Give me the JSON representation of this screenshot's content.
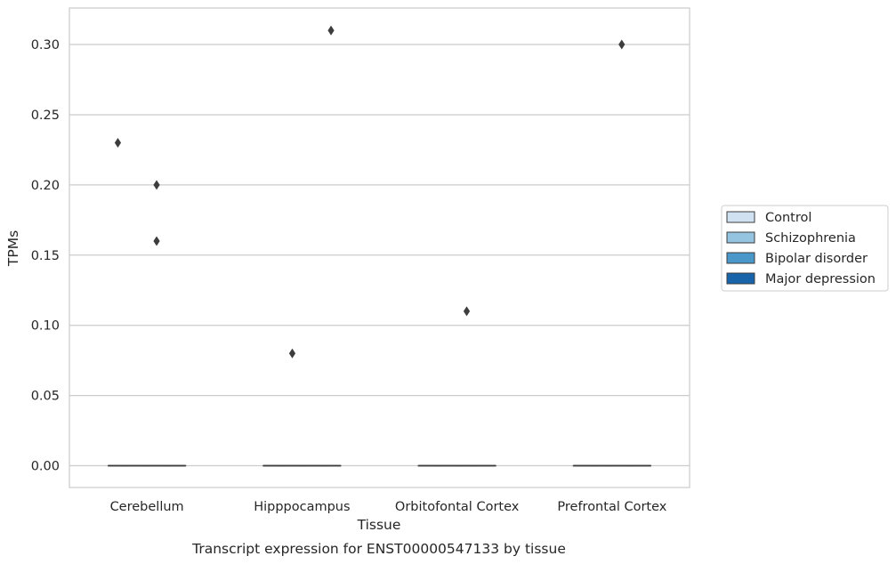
{
  "chart_data": {
    "type": "box",
    "xlabel": "Tissue",
    "ylabel": "TPMs",
    "caption": "Transcript expression for ENST00000547133 by tissue",
    "categories": [
      "Cerebellum",
      "Hipppocampus",
      "Orbitofontal Cortex",
      "Prefrontal Cortex"
    ],
    "ylim": [
      -0.0155,
      0.326
    ],
    "yticks": [
      0.0,
      0.05,
      0.1,
      0.15,
      0.2,
      0.25,
      0.3
    ],
    "ytick_labels": [
      "0.00",
      "0.05",
      "0.10",
      "0.15",
      "0.20",
      "0.25",
      "0.30"
    ],
    "grid": "horizontal",
    "legend_position": "right",
    "series": [
      {
        "name": "Control",
        "color": "#d0e1f2",
        "boxes": [
          {
            "q1": 0,
            "median": 0,
            "q3": 0
          },
          {
            "q1": 0,
            "median": 0,
            "q3": 0
          },
          {
            "q1": 0,
            "median": 0,
            "q3": 0
          },
          {
            "q1": 0,
            "median": 0,
            "q3": 0
          }
        ],
        "outliers": [
          [
            0.23
          ],
          [],
          [],
          []
        ]
      },
      {
        "name": "Schizophrenia",
        "color": "#94c4df",
        "boxes": [
          {
            "q1": 0,
            "median": 0,
            "q3": 0
          },
          {
            "q1": 0,
            "median": 0,
            "q3": 0
          },
          {
            "q1": 0,
            "median": 0,
            "q3": 0
          },
          {
            "q1": 0,
            "median": 0,
            "q3": 0
          }
        ],
        "outliers": [
          [],
          [
            0.08
          ],
          [],
          []
        ]
      },
      {
        "name": "Bipolar disorder",
        "color": "#4a98c9",
        "boxes": [
          {
            "q1": 0,
            "median": 0,
            "q3": 0
          },
          {
            "q1": 0,
            "median": 0,
            "q3": 0
          },
          {
            "q1": 0,
            "median": 0,
            "q3": 0
          },
          {
            "q1": 0,
            "median": 0,
            "q3": 0
          }
        ],
        "outliers": [
          [
            0.2,
            0.16
          ],
          [],
          [
            0.11
          ],
          [
            0.3
          ]
        ]
      },
      {
        "name": "Major depression",
        "color": "#1764ab",
        "boxes": [
          {
            "q1": 0,
            "median": 0,
            "q3": 0
          },
          {
            "q1": 0,
            "median": 0,
            "q3": 0
          },
          {
            "q1": 0,
            "median": 0,
            "q3": 0
          },
          {
            "q1": 0,
            "median": 0,
            "q3": 0
          }
        ],
        "outliers": [
          [],
          [
            0.31
          ],
          [],
          []
        ]
      }
    ]
  }
}
